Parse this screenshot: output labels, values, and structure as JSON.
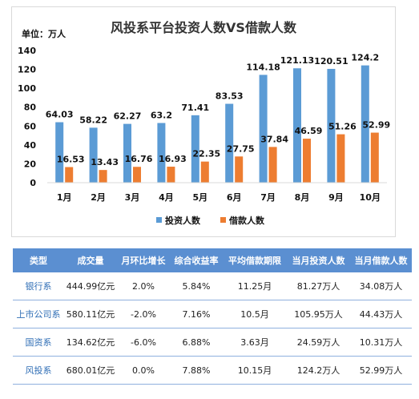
{
  "chart_data": {
    "type": "bar",
    "title": "风投系平台投资人数VS借款人数",
    "unit_label": "单位：万人",
    "categories": [
      "1月",
      "2月",
      "3月",
      "4月",
      "5月",
      "6月",
      "7月",
      "8月",
      "9月",
      "10月"
    ],
    "series": [
      {
        "name": "投资人数",
        "color": "#5b9bd5",
        "values": [
          64.03,
          58.22,
          62.27,
          63.2,
          71.41,
          83.53,
          114.18,
          121.13,
          120.51,
          124.2
        ]
      },
      {
        "name": "借款人数",
        "color": "#ed7d31",
        "values": [
          16.53,
          13.43,
          16.76,
          16.93,
          22.35,
          27.75,
          37.84,
          46.59,
          51.26,
          52.99
        ]
      }
    ],
    "ylim": [
      0,
      140
    ],
    "yticks": [
      0,
      20,
      40,
      60,
      80,
      100,
      120,
      140
    ],
    "grid": false,
    "legend": "bottom"
  },
  "table": {
    "headers": [
      "类型",
      "成交量",
      "月环比增长",
      "综合收益率",
      "平均借款期限",
      "当月投资人数",
      "当月借款人数"
    ],
    "rows": [
      [
        "银行系",
        "444.99亿元",
        "2.0%",
        "5.84%",
        "11.25月",
        "81.27万人",
        "34.08万人"
      ],
      [
        "上市公司系",
        "580.11亿元",
        "-2.0%",
        "7.16%",
        "10.5月",
        "105.95万人",
        "44.43万人"
      ],
      [
        "国资系",
        "134.62亿元",
        "-6.0%",
        "6.88%",
        "3.63月",
        "24.59万人",
        "10.31万人"
      ],
      [
        "风投系",
        "680.01亿元",
        "0.0%",
        "7.88%",
        "10.15月",
        "124.2万人",
        "52.99万人"
      ]
    ]
  }
}
